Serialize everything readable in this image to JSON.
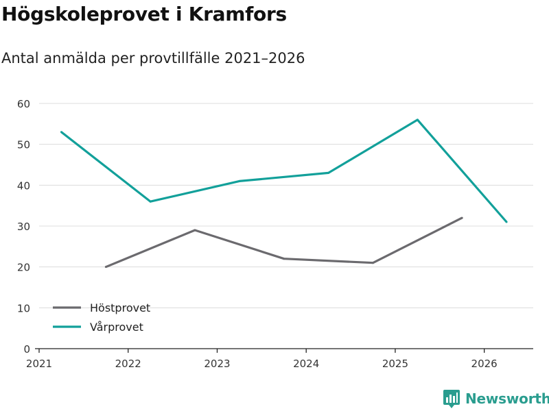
{
  "header": {
    "title": "Högskoleprovet i Kramfors",
    "subtitle": "Antal anmälda per provtillfälle 2021–2026"
  },
  "brand": {
    "name": "Newsworthy",
    "icon": "newsworthy-logo-icon",
    "color": "#2a9d8f"
  },
  "chart_data": {
    "type": "line",
    "title": "Högskoleprovet i Kramfors",
    "subtitle": "Antal anmälda per provtillfälle 2021–2026",
    "xlabel": "",
    "ylabel": "",
    "xlim": [
      2021,
      2026.55
    ],
    "ylim": [
      0,
      60
    ],
    "yticks": [
      0,
      10,
      20,
      30,
      40,
      50,
      60
    ],
    "xticks": [
      2021,
      2022,
      2023,
      2024,
      2025,
      2026
    ],
    "grid": true,
    "legend_position": "bottom-left",
    "series": [
      {
        "name": "Höstprovet",
        "color": "#6b6a6e",
        "x": [
          2021.75,
          2022.75,
          2023.75,
          2024.75,
          2025.75
        ],
        "values": [
          20,
          29,
          22,
          21,
          32
        ]
      },
      {
        "name": "Vårprovet",
        "color": "#12a09a",
        "x": [
          2021.25,
          2022.25,
          2023.25,
          2024.25,
          2025.25,
          2026.25
        ],
        "values": [
          53,
          36,
          41,
          43,
          56,
          31
        ]
      }
    ]
  }
}
